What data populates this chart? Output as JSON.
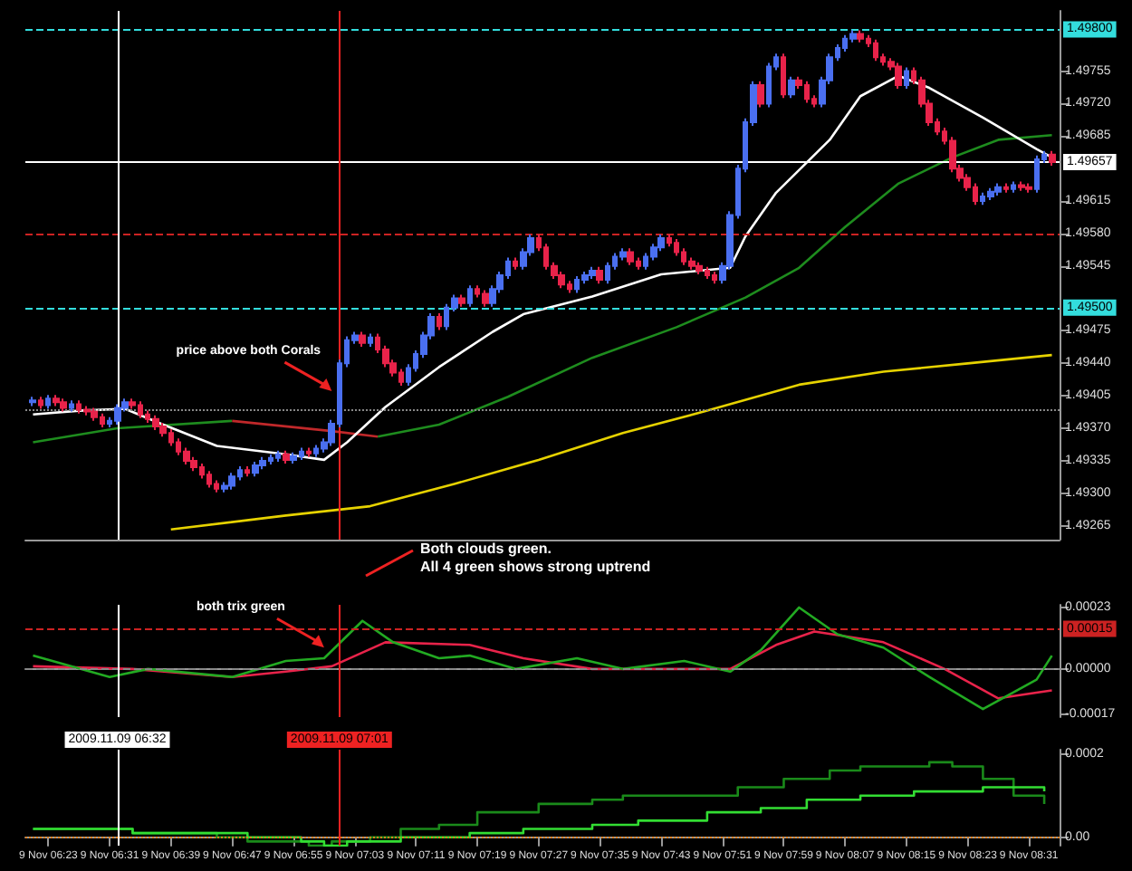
{
  "chart_data": [
    {
      "type": "candlestick",
      "tick_labels": "y",
      "grid": false,
      "marker": "none",
      "x": [
        "2009-11-09T06:21",
        "2009-11-09T06:22",
        "2009-11-09T06:23",
        "2009-11-09T06:24",
        "2009-11-09T06:25",
        "2009-11-09T06:26",
        "2009-11-09T06:27",
        "2009-11-09T06:28",
        "2009-11-09T06:29",
        "2009-11-09T06:30",
        "2009-11-09T06:31",
        "2009-11-09T06:32",
        "2009-11-09T06:33",
        "2009-11-09T06:34",
        "2009-11-09T06:35",
        "2009-11-09T06:36",
        "2009-11-09T06:37",
        "2009-11-09T06:38",
        "2009-11-09T06:39",
        "2009-11-09T06:40",
        "2009-11-09T06:41",
        "2009-11-09T06:42",
        "2009-11-09T06:43",
        "2009-11-09T06:44",
        "2009-11-09T06:45",
        "2009-11-09T06:46",
        "2009-11-09T06:47",
        "2009-11-09T06:48",
        "2009-11-09T06:49",
        "2009-11-09T06:50",
        "2009-11-09T06:51",
        "2009-11-09T06:52",
        "2009-11-09T06:53",
        "2009-11-09T06:54",
        "2009-11-09T06:55",
        "2009-11-09T06:56",
        "2009-11-09T06:57",
        "2009-11-09T06:58",
        "2009-11-09T06:59",
        "2009-11-09T07:00",
        "2009-11-09T07:01",
        "2009-11-09T07:02",
        "2009-11-09T07:03",
        "2009-11-09T07:04",
        "2009-11-09T07:05",
        "2009-11-09T07:06",
        "2009-11-09T07:07",
        "2009-11-09T07:08",
        "2009-11-09T07:09",
        "2009-11-09T07:10",
        "2009-11-09T07:11",
        "2009-11-09T07:12",
        "2009-11-09T07:13",
        "2009-11-09T07:14",
        "2009-11-09T07:15",
        "2009-11-09T07:16",
        "2009-11-09T07:17",
        "2009-11-09T07:18",
        "2009-11-09T07:19",
        "2009-11-09T07:20",
        "2009-11-09T07:21",
        "2009-11-09T07:22",
        "2009-11-09T07:23",
        "2009-11-09T07:24",
        "2009-11-09T07:25",
        "2009-11-09T07:26",
        "2009-11-09T07:27",
        "2009-11-09T07:28",
        "2009-11-09T07:29",
        "2009-11-09T07:30",
        "2009-11-09T07:31",
        "2009-11-09T07:32",
        "2009-11-09T07:33",
        "2009-11-09T07:34",
        "2009-11-09T07:35",
        "2009-11-09T07:36",
        "2009-11-09T07:37",
        "2009-11-09T07:38",
        "2009-11-09T07:39",
        "2009-11-09T07:40",
        "2009-11-09T07:41",
        "2009-11-09T07:42",
        "2009-11-09T07:43",
        "2009-11-09T07:44",
        "2009-11-09T07:45",
        "2009-11-09T07:46",
        "2009-11-09T07:47",
        "2009-11-09T07:48",
        "2009-11-09T07:49",
        "2009-11-09T07:50",
        "2009-11-09T07:51",
        "2009-11-09T07:52",
        "2009-11-09T07:53",
        "2009-11-09T07:54",
        "2009-11-09T07:55",
        "2009-11-09T07:56",
        "2009-11-09T07:57",
        "2009-11-09T07:58",
        "2009-11-09T07:59",
        "2009-11-09T08:00",
        "2009-11-09T08:01",
        "2009-11-09T08:02",
        "2009-11-09T08:03",
        "2009-11-09T08:04",
        "2009-11-09T08:05",
        "2009-11-09T08:06",
        "2009-11-09T08:07",
        "2009-11-09T08:08",
        "2009-11-09T08:09",
        "2009-11-09T08:10",
        "2009-11-09T08:11",
        "2009-11-09T08:12",
        "2009-11-09T08:13",
        "2009-11-09T08:14",
        "2009-11-09T08:15",
        "2009-11-09T08:16",
        "2009-11-09T08:17",
        "2009-11-09T08:18",
        "2009-11-09T08:19",
        "2009-11-09T08:20",
        "2009-11-09T08:21",
        "2009-11-09T08:22",
        "2009-11-09T08:23",
        "2009-11-09T08:24",
        "2009-11-09T08:25",
        "2009-11-09T08:26",
        "2009-11-09T08:27",
        "2009-11-09T08:28",
        "2009-11-09T08:29",
        "2009-11-09T08:30",
        "2009-11-09T08:31",
        "2009-11-09T08:32",
        "2009-11-09T08:33",
        "2009-11-09T08:34"
      ],
      "ohlc": [
        [
          1.49398,
          1.49404,
          1.49394,
          1.494
        ],
        [
          1.494,
          1.49404,
          1.49391,
          1.49395
        ],
        [
          1.49395,
          1.49406,
          1.49391,
          1.49402
        ],
        [
          1.49402,
          1.49406,
          1.49394,
          1.49398
        ],
        [
          1.49398,
          1.49402,
          1.49388,
          1.49392
        ],
        [
          1.49392,
          1.494,
          1.49388,
          1.49396
        ],
        [
          1.49396,
          1.494,
          1.49386,
          1.4939
        ],
        [
          1.4939,
          1.49394,
          1.49384,
          1.49388
        ],
        [
          1.49388,
          1.49392,
          1.49378,
          1.49382
        ],
        [
          1.49382,
          1.49386,
          1.49371,
          1.49375
        ],
        [
          1.49375,
          1.49382,
          1.49371,
          1.49378
        ],
        [
          1.49378,
          1.49396,
          1.49374,
          1.49392
        ],
        [
          1.49392,
          1.49402,
          1.49388,
          1.49398
        ],
        [
          1.49398,
          1.49402,
          1.49391,
          1.49395
        ],
        [
          1.49395,
          1.49399,
          1.49381,
          1.49385
        ],
        [
          1.49385,
          1.49389,
          1.49376,
          1.4938
        ],
        [
          1.4938,
          1.49384,
          1.49368,
          1.49372
        ],
        [
          1.49372,
          1.49376,
          1.49361,
          1.49365
        ],
        [
          1.49365,
          1.49369,
          1.49351,
          1.49355
        ],
        [
          1.49355,
          1.49359,
          1.49341,
          1.49345
        ],
        [
          1.49345,
          1.49349,
          1.49331,
          1.49335
        ],
        [
          1.49335,
          1.49339,
          1.49324,
          1.49328
        ],
        [
          1.49328,
          1.49332,
          1.49316,
          1.4932
        ],
        [
          1.4932,
          1.49324,
          1.49306,
          1.4931
        ],
        [
          1.4931,
          1.49314,
          1.49301,
          1.49305
        ],
        [
          1.49305,
          1.49312,
          1.49301,
          1.49308
        ],
        [
          1.49308,
          1.49322,
          1.49304,
          1.49318
        ],
        [
          1.49318,
          1.49329,
          1.49314,
          1.49325
        ],
        [
          1.49325,
          1.49329,
          1.49318,
          1.49322
        ],
        [
          1.49322,
          1.49334,
          1.49318,
          1.4933
        ],
        [
          1.4933,
          1.49339,
          1.49326,
          1.49335
        ],
        [
          1.49335,
          1.49342,
          1.49331,
          1.49338
        ],
        [
          1.49338,
          1.49346,
          1.49334,
          1.49342
        ],
        [
          1.49342,
          1.49346,
          1.49332,
          1.49336
        ],
        [
          1.49336,
          1.49344,
          1.49332,
          1.4934
        ],
        [
          1.4934,
          1.49349,
          1.49336,
          1.49345
        ],
        [
          1.49345,
          1.49349,
          1.49339,
          1.49343
        ],
        [
          1.49343,
          1.49352,
          1.49339,
          1.49348
        ],
        [
          1.49348,
          1.49359,
          1.49344,
          1.49355
        ],
        [
          1.49355,
          1.49379,
          1.49351,
          1.49375
        ],
        [
          1.49375,
          1.49444,
          1.49371,
          1.4944
        ],
        [
          1.4944,
          1.49469,
          1.49436,
          1.49465
        ],
        [
          1.49465,
          1.49474,
          1.49461,
          1.4947
        ],
        [
          1.4947,
          1.49474,
          1.49458,
          1.49462
        ],
        [
          1.49462,
          1.49472,
          1.49458,
          1.49468
        ],
        [
          1.49468,
          1.49472,
          1.49451,
          1.49455
        ],
        [
          1.49455,
          1.49459,
          1.49436,
          1.4944
        ],
        [
          1.4944,
          1.49444,
          1.49426,
          1.4943
        ],
        [
          1.4943,
          1.49434,
          1.49416,
          1.4942
        ],
        [
          1.4942,
          1.49439,
          1.49416,
          1.49435
        ],
        [
          1.49435,
          1.49454,
          1.49431,
          1.4945
        ],
        [
          1.4945,
          1.49474,
          1.49446,
          1.4947
        ],
        [
          1.4947,
          1.49494,
          1.49466,
          1.4949
        ],
        [
          1.4949,
          1.49494,
          1.49476,
          1.4948
        ],
        [
          1.4948,
          1.49504,
          1.49476,
          1.495
        ],
        [
          1.495,
          1.49514,
          1.49496,
          1.4951
        ],
        [
          1.4951,
          1.49514,
          1.49501,
          1.49505
        ],
        [
          1.49505,
          1.49524,
          1.49501,
          1.4952
        ],
        [
          1.4952,
          1.49524,
          1.49511,
          1.49515
        ],
        [
          1.49515,
          1.49519,
          1.49501,
          1.49505
        ],
        [
          1.49505,
          1.49524,
          1.49501,
          1.4952
        ],
        [
          1.4952,
          1.49539,
          1.49516,
          1.49535
        ],
        [
          1.49535,
          1.49554,
          1.49531,
          1.4955
        ],
        [
          1.4955,
          1.49554,
          1.49541,
          1.49545
        ],
        [
          1.49545,
          1.49564,
          1.49541,
          1.4956
        ],
        [
          1.4956,
          1.49579,
          1.49556,
          1.49575
        ],
        [
          1.49575,
          1.49579,
          1.49561,
          1.49565
        ],
        [
          1.49565,
          1.49569,
          1.49541,
          1.49545
        ],
        [
          1.49545,
          1.49549,
          1.49531,
          1.49535
        ],
        [
          1.49535,
          1.49539,
          1.49521,
          1.49525
        ],
        [
          1.49525,
          1.49529,
          1.49516,
          1.4952
        ],
        [
          1.4952,
          1.49534,
          1.49516,
          1.4953
        ],
        [
          1.4953,
          1.49539,
          1.49526,
          1.49535
        ],
        [
          1.49535,
          1.49544,
          1.49531,
          1.4954
        ],
        [
          1.4954,
          1.49544,
          1.49526,
          1.4953
        ],
        [
          1.4953,
          1.49549,
          1.49526,
          1.49545
        ],
        [
          1.49545,
          1.49559,
          1.49541,
          1.49555
        ],
        [
          1.49555,
          1.49564,
          1.49551,
          1.4956
        ],
        [
          1.4956,
          1.49564,
          1.49546,
          1.4955
        ],
        [
          1.4955,
          1.49554,
          1.49541,
          1.49545
        ],
        [
          1.49545,
          1.49559,
          1.49541,
          1.49555
        ],
        [
          1.49555,
          1.49569,
          1.49551,
          1.49565
        ],
        [
          1.49565,
          1.49579,
          1.49561,
          1.49575
        ],
        [
          1.49575,
          1.49579,
          1.49566,
          1.4957
        ],
        [
          1.4957,
          1.49574,
          1.49556,
          1.4956
        ],
        [
          1.4956,
          1.49564,
          1.49546,
          1.4955
        ],
        [
          1.4955,
          1.49554,
          1.49541,
          1.49545
        ],
        [
          1.49545,
          1.49549,
          1.49536,
          1.4954
        ],
        [
          1.4954,
          1.49544,
          1.49531,
          1.49535
        ],
        [
          1.49535,
          1.49539,
          1.49526,
          1.4953
        ],
        [
          1.4953,
          1.49549,
          1.49526,
          1.49545
        ],
        [
          1.49545,
          1.49604,
          1.49541,
          1.496
        ],
        [
          1.496,
          1.49654,
          1.49596,
          1.4965
        ],
        [
          1.4965,
          1.49704,
          1.49646,
          1.497
        ],
        [
          1.497,
          1.49744,
          1.49696,
          1.4974
        ],
        [
          1.4974,
          1.49744,
          1.49716,
          1.4972
        ],
        [
          1.4972,
          1.49764,
          1.49716,
          1.4976
        ],
        [
          1.4976,
          1.49774,
          1.49756,
          1.4977
        ],
        [
          1.4977,
          1.49774,
          1.49726,
          1.4973
        ],
        [
          1.4973,
          1.49749,
          1.49726,
          1.49745
        ],
        [
          1.49745,
          1.49749,
          1.49736,
          1.4974
        ],
        [
          1.4974,
          1.49744,
          1.49721,
          1.49725
        ],
        [
          1.49725,
          1.49729,
          1.49716,
          1.4972
        ],
        [
          1.4972,
          1.49749,
          1.49716,
          1.49745
        ],
        [
          1.49745,
          1.49774,
          1.49741,
          1.4977
        ],
        [
          1.4977,
          1.49784,
          1.49766,
          1.4978
        ],
        [
          1.4978,
          1.49794,
          1.49776,
          1.4979
        ],
        [
          1.4979,
          1.49799,
          1.49786,
          1.49795
        ],
        [
          1.49795,
          1.49799,
          1.49786,
          1.4979
        ],
        [
          1.4979,
          1.49794,
          1.49781,
          1.49785
        ],
        [
          1.49785,
          1.49789,
          1.49766,
          1.4977
        ],
        [
          1.4977,
          1.49774,
          1.49761,
          1.49765
        ],
        [
          1.49765,
          1.49769,
          1.49756,
          1.4976
        ],
        [
          1.4976,
          1.49764,
          1.49736,
          1.4974
        ],
        [
          1.4974,
          1.49759,
          1.49736,
          1.49755
        ],
        [
          1.49755,
          1.49759,
          1.49741,
          1.49745
        ],
        [
          1.49745,
          1.49749,
          1.49716,
          1.4972
        ],
        [
          1.4972,
          1.49724,
          1.49696,
          1.497
        ],
        [
          1.497,
          1.49704,
          1.49686,
          1.4969
        ],
        [
          1.4969,
          1.49694,
          1.49676,
          1.4968
        ],
        [
          1.4968,
          1.49684,
          1.49646,
          1.4965
        ],
        [
          1.4965,
          1.49654,
          1.49636,
          1.4964
        ],
        [
          1.4964,
          1.49644,
          1.49626,
          1.4963
        ],
        [
          1.4963,
          1.49634,
          1.49611,
          1.49615
        ],
        [
          1.49615,
          1.49624,
          1.49611,
          1.4962
        ],
        [
          1.4962,
          1.49629,
          1.49616,
          1.49625
        ],
        [
          1.49625,
          1.49634,
          1.49621,
          1.4963
        ],
        [
          1.4963,
          1.49634,
          1.49624,
          1.49628
        ],
        [
          1.49628,
          1.49636,
          1.49624,
          1.49632
        ],
        [
          1.49632,
          1.49636,
          1.49626,
          1.4963
        ],
        [
          1.4963,
          1.49634,
          1.49624,
          1.49628
        ],
        [
          1.49628,
          1.49664,
          1.49624,
          1.4966
        ],
        [
          1.4966,
          1.49669,
          1.49656,
          1.49665
        ],
        [
          1.49665,
          1.49669,
          1.49653,
          1.49657
        ]
      ],
      "colors": [
        "#4a6ff0",
        "#e8234a",
        "#4a6ff0",
        "#e8234a",
        "#e8234a",
        "#4a6ff0",
        "#e8234a",
        "#e8234a",
        "#e8234a",
        "#e8234a",
        "#4a6ff0",
        "#4a6ff0",
        "#4a6ff0",
        "#e8234a",
        "#e8234a",
        "#e8234a",
        "#e8234a",
        "#e8234a",
        "#e8234a",
        "#e8234a",
        "#e8234a",
        "#e8234a",
        "#e8234a",
        "#e8234a",
        "#e8234a",
        "#4a6ff0",
        "#4a6ff0",
        "#4a6ff0",
        "#e8234a",
        "#4a6ff0",
        "#4a6ff0",
        "#4a6ff0",
        "#4a6ff0",
        "#e8234a",
        "#4a6ff0",
        "#4a6ff0",
        "#e8234a",
        "#4a6ff0",
        "#4a6ff0",
        "#4a6ff0",
        "#4a6ff0",
        "#4a6ff0",
        "#4a6ff0",
        "#e8234a",
        "#4a6ff0",
        "#e8234a",
        "#e8234a",
        "#e8234a",
        "#e8234a",
        "#4a6ff0",
        "#4a6ff0",
        "#4a6ff0",
        "#4a6ff0",
        "#e8234a",
        "#4a6ff0",
        "#4a6ff0",
        "#e8234a",
        "#4a6ff0",
        "#e8234a",
        "#e8234a",
        "#4a6ff0",
        "#4a6ff0",
        "#4a6ff0",
        "#e8234a",
        "#4a6ff0",
        "#4a6ff0",
        "#e8234a",
        "#e8234a",
        "#e8234a",
        "#e8234a",
        "#e8234a",
        "#4a6ff0",
        "#4a6ff0",
        "#4a6ff0",
        "#e8234a",
        "#4a6ff0",
        "#4a6ff0",
        "#4a6ff0",
        "#e8234a",
        "#e8234a",
        "#4a6ff0",
        "#4a6ff0",
        "#4a6ff0",
        "#e8234a",
        "#e8234a",
        "#e8234a",
        "#e8234a",
        "#e8234a",
        "#e8234a",
        "#e8234a",
        "#4a6ff0",
        "#4a6ff0",
        "#4a6ff0",
        "#4a6ff0",
        "#4a6ff0",
        "#e8234a",
        "#4a6ff0",
        "#4a6ff0",
        "#e8234a",
        "#4a6ff0",
        "#e8234a",
        "#e8234a",
        "#e8234a",
        "#4a6ff0",
        "#4a6ff0",
        "#4a6ff0",
        "#4a6ff0",
        "#4a6ff0",
        "#e8234a",
        "#e8234a",
        "#e8234a",
        "#e8234a",
        "#e8234a",
        "#e8234a",
        "#4a6ff0",
        "#e8234a",
        "#e8234a",
        "#e8234a",
        "#e8234a",
        "#e8234a",
        "#e8234a",
        "#e8234a",
        "#e8234a",
        "#e8234a",
        "#4a6ff0",
        "#4a6ff0",
        "#4a6ff0",
        "#e8234a",
        "#4a6ff0",
        "#e8234a",
        "#e8234a",
        "#4a6ff0",
        "#4a6ff0",
        "#e8234a"
      ],
      "series": [
        {
          "type": "line",
          "color": "#e6d200",
          "x": [
            "2009-11-09T06:39",
            "2009-11-09T06:54",
            "2009-11-09T07:05",
            "2009-11-09T07:16",
            "2009-11-09T07:27",
            "2009-11-09T07:38",
            "2009-11-09T07:49",
            "2009-11-09T08:01",
            "2009-11-09T08:12",
            "2009-11-09T08:23",
            "2009-11-09T08:34"
          ],
          "values": [
            1.49261,
            1.49276,
            1.49286,
            1.4931,
            1.49336,
            1.49365,
            1.49389,
            1.49417,
            1.49431,
            1.4944,
            1.49449
          ]
        },
        {
          "type": "line",
          "color": "#1e8c1e",
          "x": [
            "2009-11-09T06:21",
            "2009-11-09T06:32",
            "2009-11-09T06:47",
            "2009-11-09T06:55",
            "2009-11-09T07:06",
            "2009-11-09T07:14",
            "2009-11-09T07:23",
            "2009-11-09T07:34",
            "2009-11-09T07:45",
            "2009-11-09T07:54",
            "2009-11-09T08:01",
            "2009-11-09T08:07",
            "2009-11-09T08:14",
            "2009-11-09T08:21",
            "2009-11-09T08:27",
            "2009-11-09T08:34"
          ],
          "values": [
            1.49355,
            1.4937,
            1.49378,
            null,
            1.49361,
            1.49374,
            1.49404,
            1.49446,
            1.49479,
            1.49511,
            1.49543,
            1.49587,
            1.49634,
            1.49662,
            1.49681,
            1.49686
          ]
        },
        {
          "type": "line",
          "color": "#c0282a",
          "x": [
            "2009-11-09T06:47",
            "2009-11-09T07:00",
            "2009-11-09T07:06"
          ],
          "values": [
            1.49378,
            1.49367,
            1.49361
          ]
        },
        {
          "type": "line",
          "color": "#ffffff",
          "x": [
            "2009-11-09T06:21",
            "2009-11-09T06:27",
            "2009-11-09T06:33",
            "2009-11-09T06:38",
            "2009-11-09T06:45",
            "2009-11-09T06:54",
            "2009-11-09T06:59",
            "2009-11-09T07:02",
            "2009-11-09T07:07",
            "2009-11-09T07:14",
            "2009-11-09T07:21",
            "2009-11-09T07:25",
            "2009-11-09T07:34",
            "2009-11-09T07:43",
            "2009-11-09T07:52",
            "2009-11-09T07:54",
            "2009-11-09T07:58",
            "2009-11-09T08:05",
            "2009-11-09T08:09",
            "2009-11-09T08:14",
            "2009-11-09T08:18",
            "2009-11-09T08:25",
            "2009-11-09T08:32",
            "2009-11-09T08:34"
          ],
          "values": [
            1.49385,
            1.49389,
            1.49391,
            1.49374,
            1.49351,
            1.49342,
            1.49336,
            1.49355,
            1.49393,
            1.49436,
            1.49474,
            1.49493,
            1.49512,
            1.49536,
            1.49543,
            1.49577,
            1.49624,
            1.49681,
            1.49728,
            1.4975,
            1.49737,
            1.49705,
            1.49671,
            1.49662
          ]
        }
      ],
      "xlim": [
        "2009-11-09T06:20",
        "2009-11-09T08:35"
      ],
      "ylim": [
        1.4925,
        1.4982
      ],
      "yticks": [
        {
          "value": 1.49265,
          "label": "1.49265"
        },
        {
          "value": 1.493,
          "label": "1.49300"
        },
        {
          "value": 1.49335,
          "label": "1.49335"
        },
        {
          "value": 1.4937,
          "label": "1.49370"
        },
        {
          "value": 1.49405,
          "label": "1.49405"
        },
        {
          "value": 1.4944,
          "label": "1.49440"
        },
        {
          "value": 1.49475,
          "label": "1.49475"
        },
        {
          "value": 1.49545,
          "label": "1.49545"
        },
        {
          "value": 1.4958,
          "label": "1.49580"
        },
        {
          "value": 1.49615,
          "label": "1.49615"
        },
        {
          "value": 1.49685,
          "label": "1.49685"
        },
        {
          "value": 1.4972,
          "label": "1.49720"
        },
        {
          "value": 1.49755,
          "label": "1.49755"
        }
      ],
      "ref_lines": [
        {
          "axis": "y",
          "value": 1.498,
          "label": "1.49800",
          "color": "#33dddd",
          "line_style": "dashed"
        },
        {
          "axis": "y",
          "value": 1.495,
          "label": "1.49500",
          "color": "#33dddd",
          "line_style": "dashed"
        },
        {
          "axis": "y",
          "value": 1.4958,
          "label": null,
          "color": "#cc2222",
          "line_style": "dashed"
        },
        {
          "axis": "y",
          "value": 1.4939,
          "label": null,
          "color": "#888888",
          "line_style": "dotted"
        },
        {
          "axis": "y",
          "value": 1.49657,
          "label": "1.49657",
          "color": "#ffffff",
          "line_style": "solid"
        },
        {
          "axis": "x",
          "value": "2009-11-09T06:32",
          "label": null,
          "color": "#ffffff",
          "line_style": "solid"
        },
        {
          "axis": "x",
          "value": "2009-11-09T07:01",
          "label": null,
          "color": "#ee2222",
          "line_style": "solid"
        }
      ],
      "annotations": [
        {
          "text": "price above both Corals",
          "x": "2009-11-09T07:00",
          "y": 1.4941
        },
        "Both clouds green.\nAll 4 green shows strong uptrend"
      ]
    },
    {
      "type": "line",
      "tick_labels": "y",
      "grid": false,
      "marker": "none",
      "series": [
        {
          "color": "#e8234a",
          "x": [
            "2009-11-09T06:21",
            "2009-11-09T06:34",
            "2009-11-09T06:47",
            "2009-11-09T06:54",
            "2009-11-09T07:00",
            "2009-11-09T07:07",
            "2009-11-09T07:18",
            "2009-11-09T07:25",
            "2009-11-09T07:34",
            "2009-11-09T07:45",
            "2009-11-09T07:52",
            "2009-11-09T07:58",
            "2009-11-09T08:03",
            "2009-11-09T08:12",
            "2009-11-09T08:20",
            "2009-11-09T08:27",
            "2009-11-09T08:34"
          ],
          "values": [
            1e-05,
            0,
            -3e-05,
            -1e-05,
            1e-05,
            0.0001,
            9e-05,
            4e-05,
            0,
            0,
            0,
            9e-05,
            0.00014,
            0.0001,
            0,
            -0.00011,
            -8e-05
          ]
        },
        {
          "color": "#22aa22",
          "x": [
            "2009-11-09T06:21",
            "2009-11-09T06:31",
            "2009-11-09T06:36",
            "2009-11-09T06:47",
            "2009-11-09T06:54",
            "2009-11-09T06:59",
            "2009-11-09T07:04",
            "2009-11-09T07:08",
            "2009-11-09T07:14",
            "2009-11-09T07:18",
            "2009-11-09T07:24",
            "2009-11-09T07:32",
            "2009-11-09T07:38",
            "2009-11-09T07:46",
            "2009-11-09T07:52",
            "2009-11-09T07:56",
            "2009-11-09T08:01",
            "2009-11-09T08:06",
            "2009-11-09T08:12",
            "2009-11-09T08:18",
            "2009-11-09T08:25",
            "2009-11-09T08:32",
            "2009-11-09T08:34"
          ],
          "values": [
            5e-05,
            -3e-05,
            0,
            -3e-05,
            3e-05,
            4e-05,
            0.00018,
            0.0001,
            4e-05,
            5e-05,
            0,
            4e-05,
            0,
            3e-05,
            -1e-05,
            7e-05,
            0.00023,
            0.00013,
            8e-05,
            -3e-05,
            -0.00015,
            -4e-05,
            5e-05
          ]
        }
      ],
      "xlim": [
        "2009-11-09T06:20",
        "2009-11-09T08:35"
      ],
      "ylim": [
        -0.00018,
        0.00024
      ],
      "yticks": [
        -0.00017,
        {
          "value": 0,
          "label": "0.00000"
        },
        0.00023
      ],
      "ref_lines": [
        {
          "axis": "y",
          "value": 0.00015,
          "label": "0.00015",
          "color": "#cc2222",
          "line_style": "dashed"
        },
        {
          "axis": "y",
          "value": 0,
          "label": null,
          "color": "#888888",
          "line_style": "dashed"
        },
        {
          "axis": "x",
          "value": "2009-11-09T06:32",
          "label": null,
          "color": "#ffffff",
          "line_style": "solid"
        },
        {
          "axis": "x",
          "value": "2009-11-09T07:01",
          "label": null,
          "color": "#ee2222",
          "line_style": "solid"
        }
      ],
      "annotations": [
        {
          "text": "both trix green",
          "x": "2009-11-09T06:59",
          "y": 8e-05
        }
      ]
    },
    {
      "type": "step",
      "grid": false,
      "marker": "none",
      "series": [
        {
          "color": "#1a8a1a",
          "x": [
            "2009-11-09T06:21",
            "2009-11-09T06:25",
            "2009-11-09T06:30",
            "2009-11-09T06:34",
            "2009-11-09T06:40",
            "2009-11-09T06:45",
            "2009-11-09T06:49",
            "2009-11-09T06:57",
            "2009-11-09T07:00",
            "2009-11-09T07:05",
            "2009-11-09T07:09",
            "2009-11-09T07:14",
            "2009-11-09T07:19",
            "2009-11-09T07:27",
            "2009-11-09T07:34",
            "2009-11-09T07:38",
            "2009-11-09T07:53",
            "2009-11-09T07:59",
            "2009-11-09T08:05",
            "2009-11-09T08:09",
            "2009-11-09T08:18",
            "2009-11-09T08:21",
            "2009-11-09T08:25",
            "2009-11-09T08:29",
            "2009-11-09T08:33"
          ],
          "values": [
            2e-05,
            2e-05,
            2e-05,
            1e-05,
            1e-05,
            0,
            -1e-05,
            -2e-05,
            -1e-05,
            0,
            2e-05,
            3e-05,
            6e-05,
            8e-05,
            9e-05,
            0.0001,
            0.00012,
            0.00014,
            0.00016,
            0.00017,
            0.00018,
            0.00017,
            0.00014,
            0.0001,
            8e-05
          ]
        },
        {
          "color": "#33dd33",
          "x": [
            "2009-11-09T06:21",
            "2009-11-09T06:34",
            "2009-11-09T06:45",
            "2009-11-09T06:49",
            "2009-11-09T06:56",
            "2009-11-09T06:59",
            "2009-11-09T07:02",
            "2009-11-09T07:09",
            "2009-11-09T07:14",
            "2009-11-09T07:18",
            "2009-11-09T07:25",
            "2009-11-09T07:34",
            "2009-11-09T07:40",
            "2009-11-09T07:49",
            "2009-11-09T07:56",
            "2009-11-09T08:02",
            "2009-11-09T08:09",
            "2009-11-09T08:16",
            "2009-11-09T08:25",
            "2009-11-09T08:33"
          ],
          "values": [
            2e-05,
            1e-05,
            1e-05,
            0,
            -1e-05,
            -2e-05,
            -1e-05,
            0,
            0,
            1e-05,
            2e-05,
            3e-05,
            4e-05,
            6e-05,
            7e-05,
            9e-05,
            0.0001,
            0.00011,
            0.00012,
            0.00011
          ]
        }
      ],
      "xlim": [
        "2009-11-09T06:20",
        "2009-11-09T08:35"
      ],
      "ylim": [
        -2e-05,
        0.00021
      ],
      "yticks": [
        {
          "value": 0,
          "label": "0.00"
        },
        0.0002
      ],
      "xticks": [
        {
          "value": "2009-11-09T06:23",
          "label": "9 Nov 06:23"
        },
        {
          "value": "2009-11-09T06:31",
          "label": "9 Nov 06:31"
        },
        {
          "value": "2009-11-09T06:39",
          "label": "9 Nov 06:39"
        },
        {
          "value": "2009-11-09T06:47",
          "label": "9 Nov 06:47"
        },
        {
          "value": "2009-11-09T06:55",
          "label": "9 Nov 06:55"
        },
        {
          "value": "2009-11-09T07:03",
          "label": "9 Nov 07:03"
        },
        {
          "value": "2009-11-09T07:11",
          "label": "9 Nov 07:11"
        },
        {
          "value": "2009-11-09T07:19",
          "label": "9 Nov 07:19"
        },
        {
          "value": "2009-11-09T07:27",
          "label": "9 Nov 07:27"
        },
        {
          "value": "2009-11-09T07:35",
          "label": "9 Nov 07:35"
        },
        {
          "value": "2009-11-09T07:43",
          "label": "9 Nov 07:43"
        },
        {
          "value": "2009-11-09T07:51",
          "label": "9 Nov 07:51"
        },
        {
          "value": "2009-11-09T07:59",
          "label": "9 Nov 07:59"
        },
        {
          "value": "2009-11-09T08:07",
          "label": "9 Nov 08:07"
        },
        {
          "value": "2009-11-09T08:15",
          "label": "9 Nov 08:15"
        },
        {
          "value": "2009-11-09T08:23",
          "label": "9 Nov 08:23"
        },
        {
          "value": "2009-11-09T08:31",
          "label": "9 Nov 08:31"
        }
      ],
      "ref_lines": [
        {
          "axis": "y",
          "value": 0,
          "label": null,
          "color": "#e08020",
          "line_style": "dotted"
        },
        {
          "axis": "x",
          "value": "2009-11-09T06:32",
          "label": "2009.11.09 06:32",
          "color": "#ffffff",
          "line_style": "solid"
        },
        {
          "axis": "x",
          "value": "2009-11-09T07:01",
          "label": "2009.11.09 07:01",
          "color": "#ee2222",
          "line_style": "solid"
        }
      ]
    }
  ]
}
